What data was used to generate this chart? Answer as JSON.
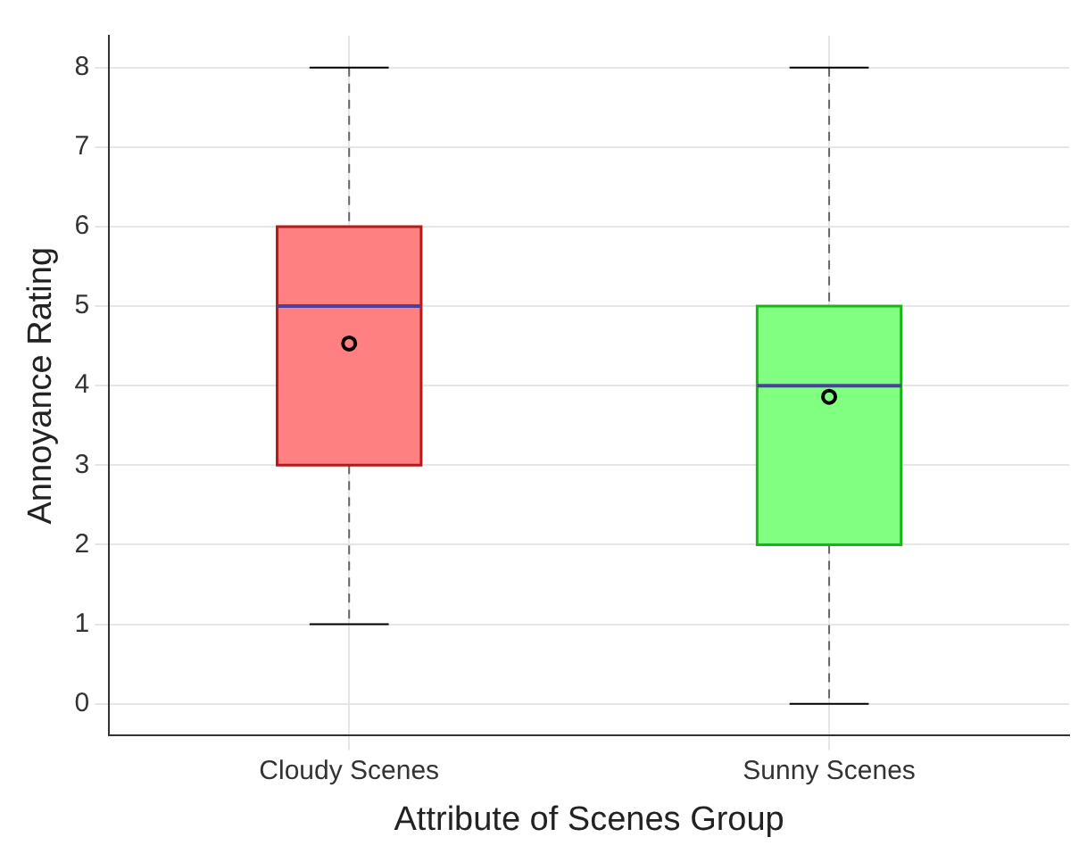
{
  "chart_data": {
    "type": "box",
    "xlabel": "Attribute of Scenes Group",
    "ylabel": "Annoyance Rating",
    "categories": [
      "Cloudy Scenes",
      "Sunny Scenes"
    ],
    "boxes": [
      {
        "low": 1,
        "q1": 3,
        "median": 5,
        "q3": 6,
        "high": 8,
        "mean": 4.53
      },
      {
        "low": 0,
        "q1": 2,
        "median": 4,
        "q3": 5,
        "high": 8,
        "mean": 3.86
      }
    ],
    "colors": [
      "#ff8080",
      "#80ff80"
    ],
    "ylim": [
      -0.4,
      8.4
    ],
    "yticks": [
      0,
      1,
      2,
      3,
      4,
      5,
      6,
      7,
      8
    ],
    "grid": true,
    "legend": false
  }
}
